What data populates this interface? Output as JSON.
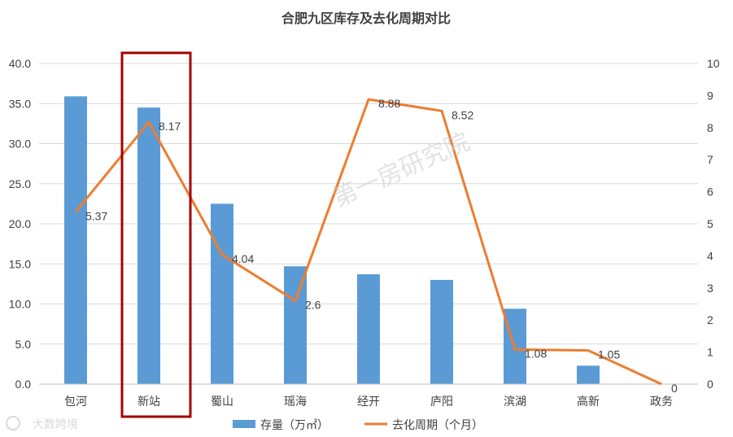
{
  "chart_data": {
    "type": "bar",
    "title": "合肥九区库存及去化周期对比",
    "categories": [
      "包河",
      "新站",
      "蜀山",
      "瑶海",
      "经开",
      "庐阳",
      "滨湖",
      "高新",
      "政务"
    ],
    "series": [
      {
        "name": "存量（万㎡）",
        "type": "bar",
        "axis": "left",
        "color": "#5b9bd5",
        "values": [
          35.9,
          34.5,
          22.5,
          14.7,
          13.7,
          13.0,
          9.4,
          2.3,
          0
        ]
      },
      {
        "name": "去化周期（个月）",
        "type": "line",
        "axis": "right",
        "color": "#ed7d31",
        "values": [
          5.37,
          8.17,
          4.04,
          2.6,
          8.88,
          8.52,
          1.08,
          1.05,
          0
        ],
        "labels": [
          "5.37",
          "8.17",
          "4.04",
          "2.6",
          "8.88",
          "8.52",
          "1.08",
          "1.05",
          "0"
        ]
      }
    ],
    "ylim_left": [
      0,
      40
    ],
    "ylim_right": [
      0,
      10
    ],
    "yticks_left": [
      "0.0",
      "5.0",
      "10.0",
      "15.0",
      "20.0",
      "25.0",
      "30.0",
      "35.0",
      "40.0"
    ],
    "yticks_right": [
      "0",
      "1",
      "2",
      "3",
      "4",
      "5",
      "6",
      "7",
      "8",
      "9",
      "10"
    ],
    "grid": true,
    "legend": "bottom-center",
    "highlight_category": "新站",
    "highlight_color": "#a50000"
  },
  "watermark": "第一房研究院",
  "logo_text": "大数跨境"
}
